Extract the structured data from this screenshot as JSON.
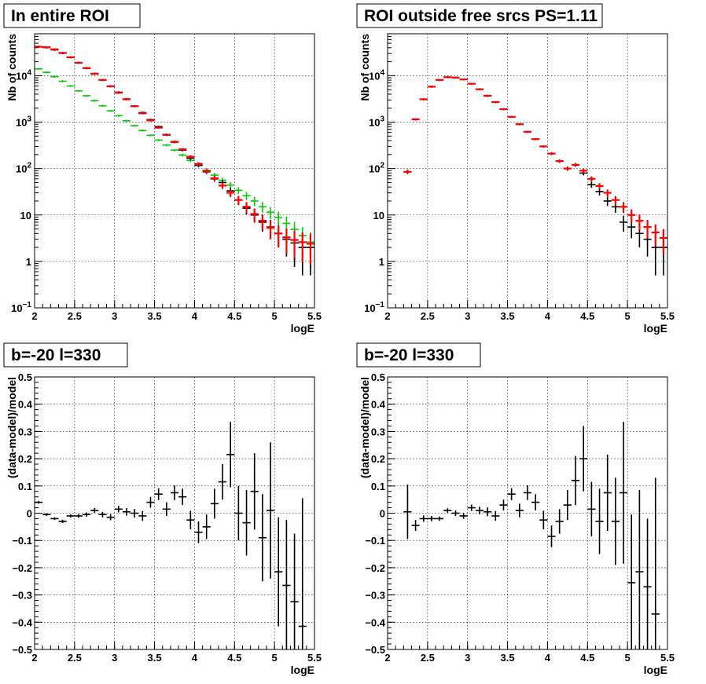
{
  "colors": {
    "data": "#000000",
    "model": "#ff0000",
    "diffuse_component": "#00cc00",
    "total_component": "#0000ff"
  },
  "chart_data": [
    {
      "type": "scatter",
      "title": "In entire ROI",
      "xlabel": "logE",
      "ylabel": "Nb of counts",
      "xlim": [
        2,
        5.5
      ],
      "ylim": [
        0.1,
        80000
      ],
      "yscale": "log",
      "grid": true,
      "x_ticks": [
        "2",
        "2.5",
        "3",
        "3.5",
        "4",
        "4.5",
        "5",
        "5.5"
      ],
      "y_ticks": [
        {
          "value": 0.1,
          "base": "10",
          "exp": "−1"
        },
        {
          "value": 1,
          "base": "1",
          "exp": ""
        },
        {
          "value": 10,
          "base": "10",
          "exp": ""
        },
        {
          "value": 100,
          "base": "10",
          "exp": "2"
        },
        {
          "value": 1000,
          "base": "10",
          "exp": "3"
        },
        {
          "value": 10000,
          "base": "10",
          "exp": "4"
        }
      ],
      "x": [
        2.05,
        2.15,
        2.25,
        2.35,
        2.45,
        2.55,
        2.65,
        2.75,
        2.85,
        2.95,
        3.05,
        3.15,
        3.25,
        3.35,
        3.45,
        3.55,
        3.65,
        3.75,
        3.85,
        3.95,
        4.05,
        4.15,
        4.25,
        4.35,
        4.45,
        4.55,
        4.65,
        4.75,
        4.85,
        4.95,
        5.05,
        5.15,
        5.25,
        5.35,
        5.45
      ],
      "series": [
        {
          "color": "#00cc00",
          "style": "errorbar",
          "values": [
            14000,
            11800,
            9500,
            7600,
            6000,
            4700,
            3700,
            2900,
            2250,
            1750,
            1370,
            1070,
            840,
            660,
            520,
            410,
            320,
            250,
            195,
            150,
            118,
            92,
            72,
            56,
            44,
            34,
            26,
            20,
            15,
            11.5,
            8.8,
            6.6,
            4.9,
            3.6,
            2.6
          ]
        },
        {
          "color": "#0000ff",
          "style": "errorbar",
          "values": [
            42000,
            41000,
            37000,
            31000,
            25000,
            19000,
            14500,
            11000,
            8100,
            5900,
            4300,
            3100,
            2200,
            1550,
            1090,
            760,
            530,
            370,
            260,
            180,
            126,
            88,
            62,
            43,
            30,
            21,
            15,
            10.5,
            7.5,
            5.3,
            4.0,
            3.3,
            2.9,
            2.6,
            2.4
          ]
        },
        {
          "color": "#000000",
          "style": "errorbar",
          "values": [
            42500,
            40500,
            36000,
            30500,
            24800,
            19000,
            14700,
            11100,
            8150,
            5950,
            4400,
            3150,
            2220,
            1600,
            1130,
            800,
            540,
            380,
            250,
            167,
            117,
            85,
            60,
            50,
            33,
            21,
            14,
            10,
            7,
            5.5,
            4,
            3,
            2.5,
            2,
            2
          ]
        },
        {
          "color": "#ff0000",
          "style": "cross",
          "values": [
            42000,
            41000,
            37000,
            31000,
            25000,
            19000,
            14500,
            11000,
            8100,
            5900,
            4300,
            3100,
            2200,
            1550,
            1090,
            760,
            530,
            370,
            260,
            180,
            126,
            88,
            62,
            43,
            30,
            21,
            15,
            10.5,
            7.5,
            5.3,
            4.0,
            3.3,
            2.9,
            2.6,
            2.4
          ]
        }
      ]
    },
    {
      "type": "scatter",
      "title": "ROI outside free srcs PS=1.11",
      "xlabel": "logE",
      "ylabel": "Nb of counts",
      "xlim": [
        2,
        5.5
      ],
      "ylim": [
        0.1,
        80000
      ],
      "yscale": "log",
      "grid": true,
      "x_ticks": [
        "2",
        "2.5",
        "3",
        "3.5",
        "4",
        "4.5",
        "5",
        "5.5"
      ],
      "y_ticks": [
        {
          "value": 0.1,
          "base": "10",
          "exp": "−1"
        },
        {
          "value": 1,
          "base": "1",
          "exp": ""
        },
        {
          "value": 10,
          "base": "10",
          "exp": ""
        },
        {
          "value": 100,
          "base": "10",
          "exp": "2"
        },
        {
          "value": 1000,
          "base": "10",
          "exp": "3"
        },
        {
          "value": 10000,
          "base": "10",
          "exp": "4"
        }
      ],
      "x": [
        2.25,
        2.35,
        2.45,
        2.55,
        2.65,
        2.75,
        2.85,
        2.95,
        3.05,
        3.15,
        3.25,
        3.35,
        3.45,
        3.55,
        3.65,
        3.75,
        3.85,
        3.95,
        4.05,
        4.15,
        4.25,
        4.35,
        4.45,
        4.55,
        4.65,
        4.75,
        4.85,
        4.95,
        5.05,
        5.15,
        5.25,
        5.35,
        5.45
      ],
      "series": [
        {
          "color": "#000000",
          "style": "errorbar",
          "values": [
            85,
            1150,
            3100,
            5800,
            8100,
            9300,
            9100,
            8300,
            6700,
            5100,
            3700,
            2700,
            1900,
            1300,
            900,
            620,
            430,
            300,
            210,
            145,
            100,
            120,
            80,
            45,
            32,
            20,
            15,
            7,
            5.5,
            4,
            3,
            2,
            2
          ]
        },
        {
          "color": "#ff0000",
          "style": "cross",
          "values": [
            85,
            1150,
            3100,
            5800,
            8100,
            9300,
            9100,
            8300,
            6700,
            5100,
            3700,
            2700,
            1900,
            1300,
            900,
            620,
            430,
            300,
            210,
            145,
            100,
            120,
            90,
            60,
            42,
            30,
            21,
            15,
            10,
            7.5,
            5.5,
            4.2,
            3.2
          ]
        }
      ]
    },
    {
      "type": "scatter",
      "title": "b=-20 l=330",
      "xlabel": "logE",
      "ylabel": "(data-model)/model",
      "xlim": [
        2,
        5.5
      ],
      "ylim": [
        -0.5,
        0.5
      ],
      "grid": true,
      "x_ticks": [
        "2",
        "2.5",
        "3",
        "3.5",
        "4",
        "4.5",
        "5",
        "5.5"
      ],
      "y_ticks": [
        "−0.5",
        "−0.4",
        "−0.3",
        "−0.2",
        "−0.1",
        "0",
        "0.1",
        "0.2",
        "0.3",
        "0.4",
        "0.5"
      ],
      "x": [
        2.05,
        2.15,
        2.25,
        2.35,
        2.45,
        2.55,
        2.65,
        2.75,
        2.85,
        2.95,
        3.05,
        3.15,
        3.25,
        3.35,
        3.45,
        3.55,
        3.65,
        3.75,
        3.85,
        3.95,
        4.05,
        4.15,
        4.25,
        4.35,
        4.45,
        4.55,
        4.65,
        4.75,
        4.85,
        4.95,
        5.05,
        5.15,
        5.25,
        5.35,
        5.45
      ],
      "series": [
        {
          "color": "#000000",
          "style": "errorbar",
          "values": [
            0.04,
            -0.005,
            -0.02,
            -0.03,
            -0.01,
            -0.01,
            -0.005,
            0.01,
            -0.005,
            -0.015,
            0.015,
            0.005,
            0.0,
            -0.01,
            0.04,
            0.07,
            0.015,
            0.075,
            0.06,
            -0.025,
            -0.07,
            -0.05,
            0.035,
            0.115,
            0.215,
            0.0,
            -0.035,
            0.08,
            -0.09,
            0.01,
            -0.215,
            -0.265,
            -0.325,
            -0.415,
            0.0
          ],
          "errors": [
            0.005,
            0.005,
            0.005,
            0.006,
            0.006,
            0.007,
            0.008,
            0.009,
            0.01,
            0.011,
            0.012,
            0.014,
            0.016,
            0.018,
            0.02,
            0.022,
            0.025,
            0.027,
            0.03,
            0.034,
            0.04,
            0.045,
            0.055,
            0.065,
            0.12,
            0.1,
            0.12,
            0.14,
            0.16,
            0.25,
            0.2,
            0.24,
            0.25,
            0.47,
            0.0
          ]
        }
      ]
    },
    {
      "type": "scatter",
      "title": "b=-20 l=330",
      "xlabel": "logE",
      "ylabel": "(data-model)/model",
      "xlim": [
        2,
        5.5
      ],
      "ylim": [
        -0.5,
        0.5
      ],
      "grid": true,
      "x_ticks": [
        "2",
        "2.5",
        "3",
        "3.5",
        "4",
        "4.5",
        "5",
        "5.5"
      ],
      "y_ticks": [
        "−0.5",
        "−0.4",
        "−0.3",
        "−0.2",
        "−0.1",
        "0",
        "0.1",
        "0.2",
        "0.3",
        "0.4",
        "0.5"
      ],
      "x": [
        2.25,
        2.35,
        2.45,
        2.55,
        2.65,
        2.75,
        2.85,
        2.95,
        3.05,
        3.15,
        3.25,
        3.35,
        3.45,
        3.55,
        3.65,
        3.75,
        3.85,
        3.95,
        4.05,
        4.15,
        4.25,
        4.35,
        4.45,
        4.55,
        4.65,
        4.75,
        4.85,
        4.95,
        5.05,
        5.15,
        5.25,
        5.35,
        5.45
      ],
      "series": [
        {
          "color": "#000000",
          "style": "errorbar",
          "values": [
            0.005,
            -0.045,
            -0.02,
            -0.02,
            -0.02,
            0.01,
            0.0,
            -0.01,
            0.02,
            0.01,
            0.005,
            -0.01,
            0.03,
            0.07,
            0.01,
            0.075,
            0.04,
            -0.025,
            -0.085,
            -0.03,
            0.03,
            0.12,
            0.2,
            0.015,
            -0.03,
            0.075,
            -0.03,
            0.075,
            -0.255,
            -0.215,
            -0.27,
            -0.37,
            0.0
          ],
          "errors": [
            0.1,
            0.02,
            0.012,
            0.01,
            0.008,
            0.008,
            0.01,
            0.011,
            0.012,
            0.014,
            0.016,
            0.018,
            0.02,
            0.022,
            0.025,
            0.027,
            0.03,
            0.034,
            0.04,
            0.045,
            0.055,
            0.09,
            0.12,
            0.1,
            0.12,
            0.14,
            0.16,
            0.26,
            0.25,
            0.3,
            0.25,
            0.5,
            0.0
          ]
        }
      ]
    }
  ]
}
